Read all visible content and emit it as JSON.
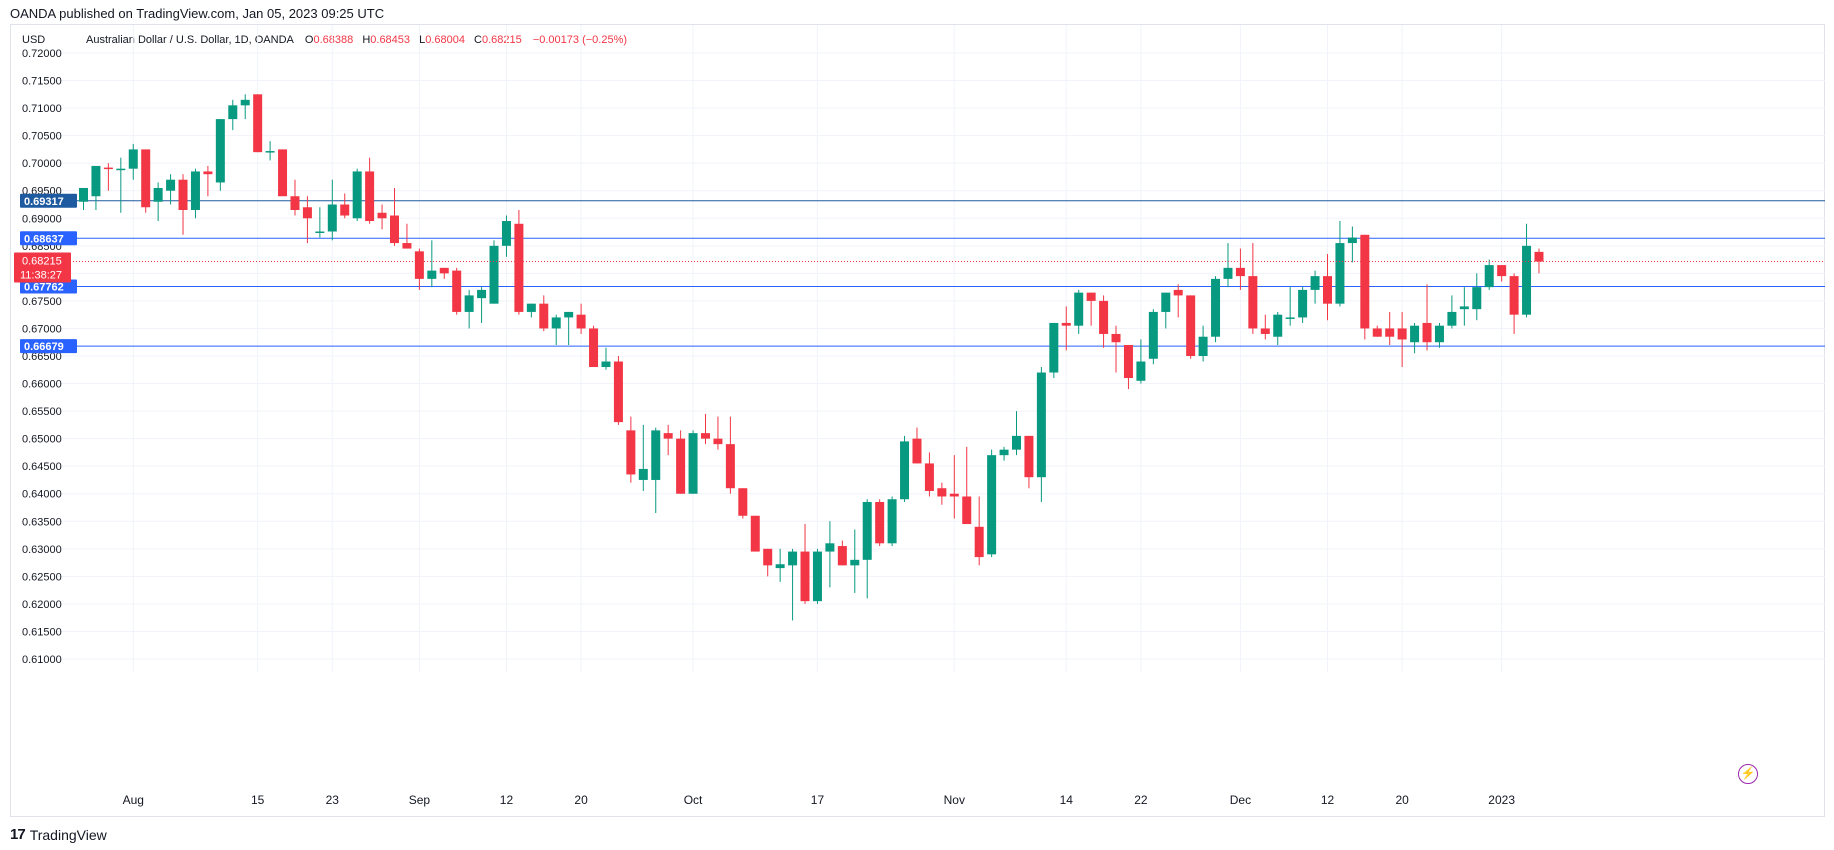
{
  "header": {
    "published": "OANDA published on TradingView.com, Jan 05, 2023 09:25 UTC",
    "currency": "USD",
    "symbol_title": "Australian Dollar / U.S. Dollar, 1D, OANDA",
    "o_label": "O",
    "o_value": "0.68388",
    "h_label": "H",
    "h_value": "0.68453",
    "l_label": "L",
    "l_value": "0.68004",
    "c_label": "C",
    "c_value": "0.68215",
    "change": "−0.00173 (−0.25%)"
  },
  "footer": {
    "brand": "TradingView"
  },
  "colors": {
    "up": "#089981",
    "down": "#f23645",
    "level": "#2962ff",
    "level_dark": "#1e5aa0"
  },
  "chart_data": {
    "type": "candlestick",
    "ylim": [
      0.605,
      0.7245
    ],
    "y_ticks": [
      "0.72000",
      "0.71500",
      "0.71000",
      "0.70500",
      "0.70000",
      "0.69500",
      "0.69000",
      "0.68500",
      "0.68000",
      "0.67500",
      "0.67000",
      "0.66500",
      "0.66000",
      "0.65500",
      "0.65000",
      "0.64500",
      "0.64000",
      "0.63500",
      "0.63000",
      "0.62500",
      "0.62000",
      "0.61500",
      "0.61000"
    ],
    "x_ticks": [
      {
        "label": "Aug",
        "index": 4
      },
      {
        "label": "15",
        "index": 14
      },
      {
        "label": "23",
        "index": 20
      },
      {
        "label": "Sep",
        "index": 27
      },
      {
        "label": "12",
        "index": 34
      },
      {
        "label": "20",
        "index": 40
      },
      {
        "label": "Oct",
        "index": 49
      },
      {
        "label": "17",
        "index": 59
      },
      {
        "label": "Nov",
        "index": 70
      },
      {
        "label": "14",
        "index": 79
      },
      {
        "label": "22",
        "index": 85
      },
      {
        "label": "Dec",
        "index": 93
      },
      {
        "label": "12",
        "index": 100
      },
      {
        "label": "20",
        "index": 106
      },
      {
        "label": "2023",
        "index": 114
      }
    ],
    "levels": [
      {
        "value": "0.69317",
        "style": "dark"
      },
      {
        "value": "0.68637",
        "style": "blue"
      },
      {
        "value": "0.67762",
        "style": "blue"
      },
      {
        "value": "0.66679",
        "style": "blue"
      }
    ],
    "last_price": {
      "value": "0.68215",
      "countdown": "11:38:27"
    },
    "candles": [
      [
        0.693,
        0.6955,
        0.6915,
        0.6955
      ],
      [
        0.694,
        0.699,
        0.6915,
        0.6995
      ],
      [
        0.6992,
        0.7,
        0.695,
        0.699
      ],
      [
        0.699,
        0.701,
        0.691,
        0.699
      ],
      [
        0.699,
        0.7035,
        0.697,
        0.7025
      ],
      [
        0.7025,
        0.7025,
        0.691,
        0.692
      ],
      [
        0.693,
        0.6965,
        0.6895,
        0.6955
      ],
      [
        0.695,
        0.698,
        0.6925,
        0.697
      ],
      [
        0.697,
        0.698,
        0.687,
        0.6915
      ],
      [
        0.6915,
        0.699,
        0.69,
        0.6985
      ],
      [
        0.6985,
        0.6995,
        0.694,
        0.698
      ],
      [
        0.6965,
        0.708,
        0.695,
        0.708
      ],
      [
        0.708,
        0.7115,
        0.706,
        0.7105
      ],
      [
        0.7105,
        0.7125,
        0.708,
        0.7115
      ],
      [
        0.7125,
        0.7125,
        0.702,
        0.702
      ],
      [
        0.702,
        0.704,
        0.7005,
        0.7022
      ],
      [
        0.7025,
        0.7025,
        0.6945,
        0.694
      ],
      [
        0.694,
        0.697,
        0.6905,
        0.6915
      ],
      [
        0.692,
        0.694,
        0.6855,
        0.69
      ],
      [
        0.6874,
        0.692,
        0.6865,
        0.6876
      ],
      [
        0.6876,
        0.697,
        0.686,
        0.6925
      ],
      [
        0.6925,
        0.6945,
        0.69,
        0.6905
      ],
      [
        0.69,
        0.699,
        0.6895,
        0.6985
      ],
      [
        0.6985,
        0.701,
        0.689,
        0.6895
      ],
      [
        0.691,
        0.6925,
        0.688,
        0.69
      ],
      [
        0.6905,
        0.6955,
        0.685,
        0.6855
      ],
      [
        0.6855,
        0.689,
        0.6845,
        0.6845
      ],
      [
        0.684,
        0.6845,
        0.677,
        0.679
      ],
      [
        0.679,
        0.686,
        0.6775,
        0.6805
      ],
      [
        0.681,
        0.681,
        0.679,
        0.68
      ],
      [
        0.6805,
        0.681,
        0.6725,
        0.673
      ],
      [
        0.673,
        0.677,
        0.67,
        0.676
      ],
      [
        0.6755,
        0.6775,
        0.671,
        0.677
      ],
      [
        0.6745,
        0.686,
        0.6745,
        0.685
      ],
      [
        0.685,
        0.6905,
        0.683,
        0.6895
      ],
      [
        0.689,
        0.6915,
        0.6725,
        0.673
      ],
      [
        0.673,
        0.6745,
        0.672,
        0.6745
      ],
      [
        0.6745,
        0.676,
        0.6695,
        0.67
      ],
      [
        0.67,
        0.6725,
        0.667,
        0.672
      ],
      [
        0.672,
        0.673,
        0.667,
        0.673
      ],
      [
        0.6725,
        0.6745,
        0.669,
        0.67
      ],
      [
        0.67,
        0.6705,
        0.663,
        0.663
      ],
      [
        0.663,
        0.6665,
        0.6625,
        0.664
      ],
      [
        0.664,
        0.665,
        0.6525,
        0.653
      ],
      [
        0.6515,
        0.654,
        0.642,
        0.6435
      ],
      [
        0.6425,
        0.6525,
        0.6405,
        0.6445
      ],
      [
        0.6425,
        0.652,
        0.6365,
        0.6515
      ],
      [
        0.651,
        0.6525,
        0.647,
        0.65
      ],
      [
        0.65,
        0.6515,
        0.64,
        0.64
      ],
      [
        0.64,
        0.6515,
        0.64,
        0.651
      ],
      [
        0.651,
        0.6545,
        0.649,
        0.65
      ],
      [
        0.65,
        0.654,
        0.648,
        0.649
      ],
      [
        0.649,
        0.654,
        0.64,
        0.641
      ],
      [
        0.641,
        0.641,
        0.6355,
        0.636
      ],
      [
        0.636,
        0.636,
        0.6295,
        0.6295
      ],
      [
        0.63,
        0.63,
        0.625,
        0.627
      ],
      [
        0.6265,
        0.63,
        0.624,
        0.6272
      ],
      [
        0.627,
        0.63,
        0.617,
        0.6295
      ],
      [
        0.6295,
        0.6345,
        0.62,
        0.6205
      ],
      [
        0.6205,
        0.63,
        0.62,
        0.6295
      ],
      [
        0.6295,
        0.635,
        0.623,
        0.631
      ],
      [
        0.6305,
        0.6315,
        0.627,
        0.627
      ],
      [
        0.627,
        0.6335,
        0.622,
        0.628
      ],
      [
        0.628,
        0.639,
        0.621,
        0.6385
      ],
      [
        0.6385,
        0.639,
        0.6305,
        0.631
      ],
      [
        0.631,
        0.6395,
        0.6305,
        0.639
      ],
      [
        0.639,
        0.6505,
        0.6385,
        0.6495
      ],
      [
        0.65,
        0.652,
        0.6455,
        0.6455
      ],
      [
        0.6455,
        0.6475,
        0.6395,
        0.6405
      ],
      [
        0.641,
        0.642,
        0.638,
        0.6395
      ],
      [
        0.64,
        0.647,
        0.6355,
        0.6395
      ],
      [
        0.6395,
        0.6485,
        0.6345,
        0.6345
      ],
      [
        0.634,
        0.6395,
        0.627,
        0.6285
      ],
      [
        0.629,
        0.648,
        0.6285,
        0.647
      ],
      [
        0.647,
        0.6485,
        0.646,
        0.648
      ],
      [
        0.648,
        0.655,
        0.647,
        0.6505
      ],
      [
        0.6505,
        0.6505,
        0.641,
        0.643
      ],
      [
        0.643,
        0.663,
        0.6385,
        0.662
      ],
      [
        0.662,
        0.671,
        0.661,
        0.671
      ],
      [
        0.671,
        0.674,
        0.666,
        0.6705
      ],
      [
        0.6705,
        0.677,
        0.669,
        0.6765
      ],
      [
        0.6765,
        0.6765,
        0.6705,
        0.675
      ],
      [
        0.675,
        0.676,
        0.6665,
        0.669
      ],
      [
        0.669,
        0.6705,
        0.662,
        0.6675
      ],
      [
        0.667,
        0.667,
        0.659,
        0.661
      ],
      [
        0.6605,
        0.668,
        0.66,
        0.664
      ],
      [
        0.6645,
        0.6735,
        0.6635,
        0.673
      ],
      [
        0.673,
        0.6765,
        0.67,
        0.6765
      ],
      [
        0.677,
        0.678,
        0.672,
        0.676
      ],
      [
        0.676,
        0.676,
        0.6645,
        0.665
      ],
      [
        0.665,
        0.6705,
        0.664,
        0.6685
      ],
      [
        0.6685,
        0.6795,
        0.6675,
        0.679
      ],
      [
        0.679,
        0.6855,
        0.6775,
        0.681
      ],
      [
        0.681,
        0.6845,
        0.677,
        0.6795
      ],
      [
        0.6795,
        0.6855,
        0.669,
        0.67
      ],
      [
        0.67,
        0.6725,
        0.668,
        0.669
      ],
      [
        0.6685,
        0.673,
        0.667,
        0.6725
      ],
      [
        0.672,
        0.6775,
        0.6705,
        0.672
      ],
      [
        0.672,
        0.6775,
        0.671,
        0.677
      ],
      [
        0.677,
        0.6805,
        0.6745,
        0.6795
      ],
      [
        0.6795,
        0.6835,
        0.6715,
        0.6745
      ],
      [
        0.6745,
        0.6895,
        0.674,
        0.6855
      ],
      [
        0.6855,
        0.6885,
        0.682,
        0.6865
      ],
      [
        0.687,
        0.687,
        0.668,
        0.67
      ],
      [
        0.67,
        0.6705,
        0.6685,
        0.6685
      ],
      [
        0.67,
        0.673,
        0.667,
        0.6685
      ],
      [
        0.67,
        0.673,
        0.663,
        0.668
      ],
      [
        0.6675,
        0.671,
        0.6655,
        0.6705
      ],
      [
        0.671,
        0.678,
        0.666,
        0.6675
      ],
      [
        0.6675,
        0.671,
        0.6665,
        0.6705
      ],
      [
        0.6705,
        0.676,
        0.67,
        0.673
      ],
      [
        0.6735,
        0.6775,
        0.6705,
        0.674
      ],
      [
        0.6735,
        0.68,
        0.6715,
        0.6775
      ],
      [
        0.6775,
        0.6825,
        0.677,
        0.6815
      ],
      [
        0.6815,
        0.6815,
        0.6785,
        0.6795
      ],
      [
        0.6795,
        0.68,
        0.669,
        0.6725
      ],
      [
        0.6725,
        0.689,
        0.672,
        0.685
      ],
      [
        0.6839,
        0.6845,
        0.68,
        0.68215
      ]
    ]
  }
}
